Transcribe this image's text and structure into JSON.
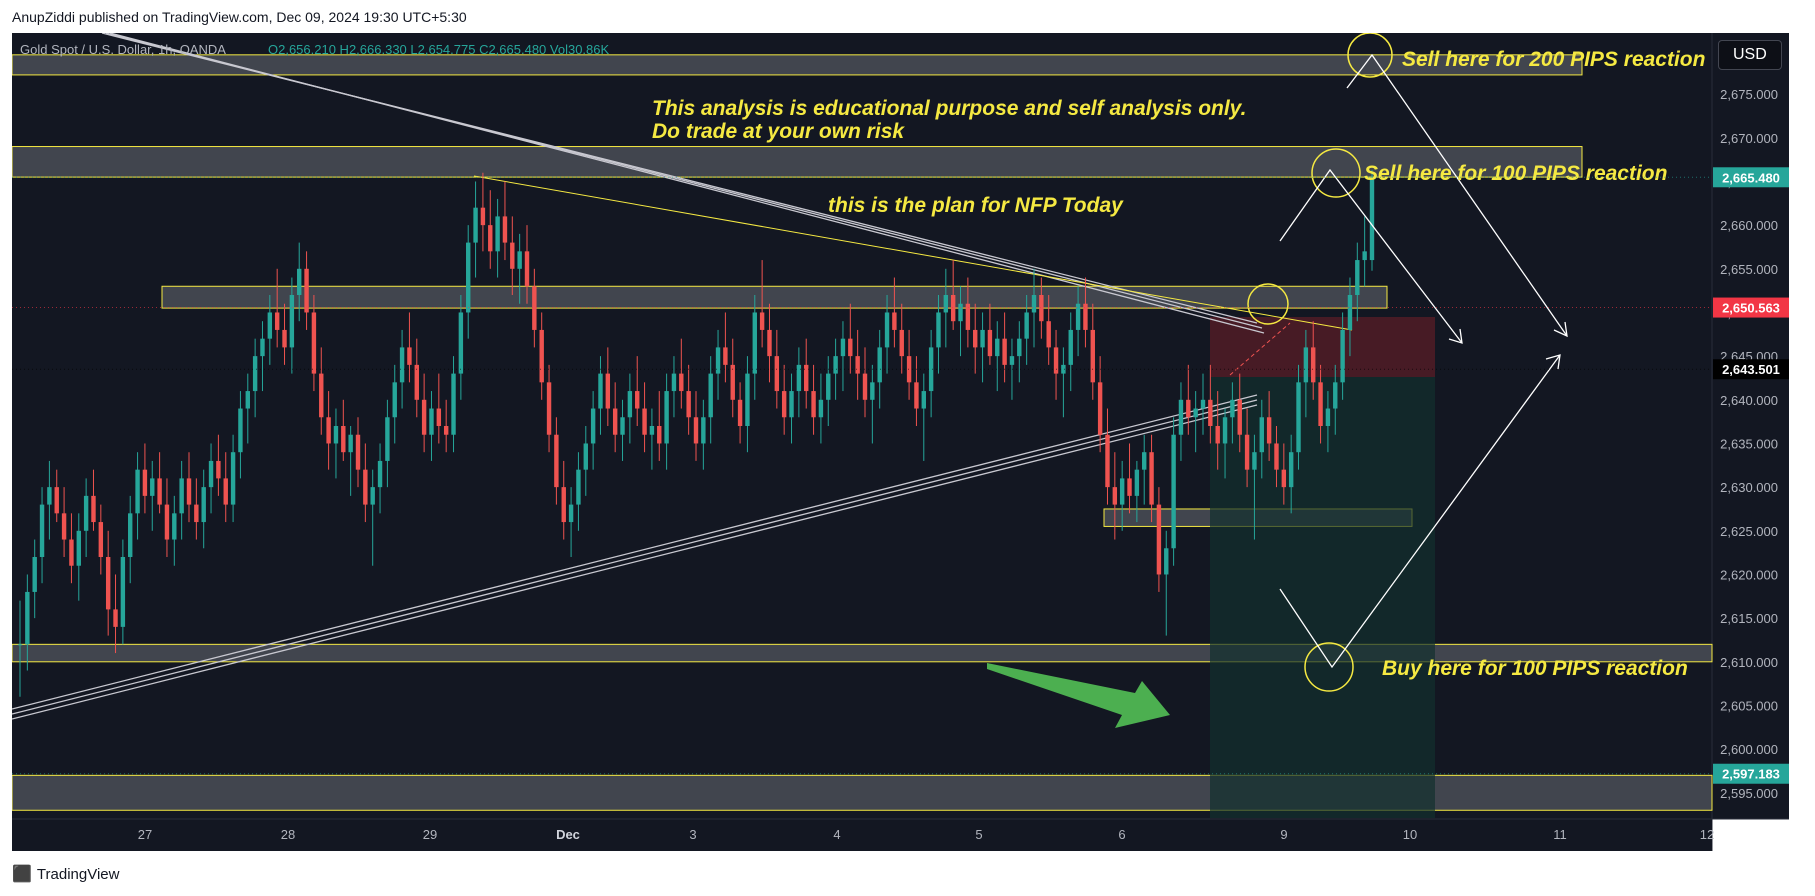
{
  "header": {
    "publisher": "AnupZiddi published on TradingView.com, Dec 09, 2024 19:30 UTC+5:30"
  },
  "symbol_info": {
    "name": "Gold Spot / U.S. Dollar, 1h, OANDA",
    "ohlc": "O2,656.210 H2,666.330 L2,654.775 C2,665.480 Vol30.86K"
  },
  "currency_button": "USD",
  "footer": {
    "brand": "TradingView"
  },
  "colors": {
    "background": "#131722",
    "up": "#26a69a",
    "down": "#ef5350",
    "annotation": "#f5e942",
    "zone_fill": "#4a4d56",
    "zone_border": "#f5e942",
    "red_zone": "#5a1e27",
    "green_zone": "#12302e",
    "arrow_green": "#4caf50"
  },
  "chart_data": {
    "type": "candlestick",
    "symbol": "Gold Spot / U.S. Dollar",
    "timeframe": "1h",
    "ylim": [
      2592,
      2682
    ],
    "y_ticks": [
      2595,
      2600,
      2605,
      2610,
      2615,
      2620,
      2625,
      2630,
      2635,
      2640,
      2645,
      2650,
      2655,
      2660,
      2665,
      2670,
      2675
    ],
    "x_ticks": [
      "27",
      "28",
      "29",
      "Dec",
      "3",
      "4",
      "5",
      "6",
      "9",
      "10",
      "11",
      "12"
    ],
    "price_labels": [
      {
        "value": 2665.48,
        "text": "2,665.480",
        "bg": "#26a69a"
      },
      {
        "value": 2650.563,
        "text": "2,650.563",
        "bg": "#f23645"
      },
      {
        "value": 2643.501,
        "text": "2,643.501",
        "bg": "#000000"
      },
      {
        "value": 2597.183,
        "text": "2,597.183",
        "bg": "#26a69a"
      }
    ],
    "zones": [
      {
        "low": 2677.2,
        "high": 2679.5
      },
      {
        "low": 2665.5,
        "high": 2669.0
      },
      {
        "low": 2650.5,
        "high": 2653.0
      },
      {
        "low": 2625.5,
        "high": 2627.5
      },
      {
        "low": 2610.0,
        "high": 2612.0
      },
      {
        "low": 2593.0,
        "high": 2597.0
      }
    ],
    "annotations": {
      "disclaimer_line1": "This analysis is educational purpose and self analysis only.",
      "disclaimer_line2": "Do trade at your own risk",
      "plan": "this is the plan for NFP Today",
      "sell_200": "Sell here for 200 PIPS reaction",
      "sell_100": "Sell here for 100 PIPS reaction",
      "buy_100": "Buy here for 100 PIPS reaction"
    },
    "candles": [
      [
        2612,
        2617,
        2606,
        2612
      ],
      [
        2612,
        2620,
        2609,
        2618
      ],
      [
        2618,
        2624,
        2615,
        2622
      ],
      [
        2622,
        2630,
        2619,
        2628
      ],
      [
        2628,
        2633,
        2624,
        2630
      ],
      [
        2630,
        2632,
        2626,
        2627
      ],
      [
        2627,
        2630,
        2622,
        2624
      ],
      [
        2624,
        2627,
        2619,
        2621
      ],
      [
        2621,
        2627,
        2617,
        2625
      ],
      [
        2625,
        2631,
        2622,
        2629
      ],
      [
        2629,
        2632,
        2625,
        2626
      ],
      [
        2626,
        2628,
        2620,
        2622
      ],
      [
        2622,
        2625,
        2613,
        2616
      ],
      [
        2616,
        2620,
        2611,
        2614
      ],
      [
        2614,
        2624,
        2612,
        2622
      ],
      [
        2622,
        2629,
        2619,
        2627
      ],
      [
        2627,
        2634,
        2624,
        2632
      ],
      [
        2632,
        2635,
        2627,
        2629
      ],
      [
        2629,
        2633,
        2625,
        2631
      ],
      [
        2631,
        2634,
        2627,
        2628
      ],
      [
        2628,
        2631,
        2622,
        2624
      ],
      [
        2624,
        2629,
        2621,
        2627
      ],
      [
        2627,
        2633,
        2624,
        2631
      ],
      [
        2631,
        2634,
        2626,
        2628
      ],
      [
        2628,
        2631,
        2624,
        2626
      ],
      [
        2626,
        2632,
        2623,
        2630
      ],
      [
        2630,
        2635,
        2627,
        2633
      ],
      [
        2633,
        2636,
        2629,
        2631
      ],
      [
        2631,
        2634,
        2626,
        2628
      ],
      [
        2628,
        2636,
        2626,
        2634
      ],
      [
        2634,
        2641,
        2631,
        2639
      ],
      [
        2639,
        2643,
        2635,
        2641
      ],
      [
        2641,
        2647,
        2638,
        2645
      ],
      [
        2645,
        2649,
        2641,
        2647
      ],
      [
        2647,
        2652,
        2644,
        2650
      ],
      [
        2650,
        2655,
        2646,
        2648
      ],
      [
        2648,
        2651,
        2644,
        2646
      ],
      [
        2646,
        2654,
        2643,
        2652
      ],
      [
        2652,
        2658,
        2649,
        2655
      ],
      [
        2655,
        2657,
        2648,
        2650
      ],
      [
        2650,
        2652,
        2641,
        2643
      ],
      [
        2643,
        2646,
        2636,
        2638
      ],
      [
        2638,
        2641,
        2632,
        2635
      ],
      [
        2635,
        2639,
        2631,
        2637
      ],
      [
        2637,
        2640,
        2633,
        2634
      ],
      [
        2634,
        2637,
        2629,
        2636
      ],
      [
        2636,
        2638,
        2630,
        2632
      ],
      [
        2632,
        2635,
        2626,
        2628
      ],
      [
        2628,
        2632,
        2621,
        2630
      ],
      [
        2630,
        2635,
        2627,
        2633
      ],
      [
        2633,
        2640,
        2630,
        2638
      ],
      [
        2638,
        2644,
        2635,
        2642
      ],
      [
        2642,
        2648,
        2639,
        2646
      ],
      [
        2646,
        2650,
        2642,
        2644
      ],
      [
        2644,
        2647,
        2638,
        2640
      ],
      [
        2640,
        2643,
        2634,
        2636
      ],
      [
        2636,
        2641,
        2633,
        2639
      ],
      [
        2639,
        2643,
        2635,
        2637
      ],
      [
        2637,
        2640,
        2634,
        2636
      ],
      [
        2636,
        2645,
        2634,
        2643
      ],
      [
        2643,
        2652,
        2640,
        2650
      ],
      [
        2650,
        2660,
        2647,
        2658
      ],
      [
        2658,
        2665,
        2654,
        2662
      ],
      [
        2662,
        2666,
        2657,
        2660
      ],
      [
        2660,
        2664,
        2655,
        2657
      ],
      [
        2657,
        2663,
        2654,
        2661
      ],
      [
        2661,
        2665,
        2656,
        2658
      ],
      [
        2658,
        2661,
        2652,
        2655
      ],
      [
        2655,
        2659,
        2651,
        2657
      ],
      [
        2657,
        2660,
        2651,
        2653
      ],
      [
        2653,
        2655,
        2646,
        2648
      ],
      [
        2648,
        2650,
        2640,
        2642
      ],
      [
        2642,
        2644,
        2634,
        2636
      ],
      [
        2636,
        2638,
        2628,
        2630
      ],
      [
        2630,
        2633,
        2624,
        2626
      ],
      [
        2626,
        2630,
        2622,
        2628
      ],
      [
        2628,
        2634,
        2625,
        2632
      ],
      [
        2632,
        2637,
        2629,
        2635
      ],
      [
        2635,
        2641,
        2632,
        2639
      ],
      [
        2639,
        2645,
        2636,
        2643
      ],
      [
        2643,
        2646,
        2637,
        2639
      ],
      [
        2639,
        2642,
        2634,
        2636
      ],
      [
        2636,
        2640,
        2633,
        2638
      ],
      [
        2638,
        2643,
        2635,
        2641
      ],
      [
        2641,
        2645,
        2637,
        2639
      ],
      [
        2639,
        2642,
        2634,
        2636
      ],
      [
        2636,
        2639,
        2632,
        2637
      ],
      [
        2637,
        2641,
        2633,
        2635
      ],
      [
        2635,
        2643,
        2632,
        2641
      ],
      [
        2641,
        2645,
        2638,
        2643
      ],
      [
        2643,
        2647,
        2639,
        2641
      ],
      [
        2641,
        2644,
        2636,
        2638
      ],
      [
        2638,
        2641,
        2633,
        2635
      ],
      [
        2635,
        2640,
        2632,
        2638
      ],
      [
        2638,
        2645,
        2635,
        2643
      ],
      [
        2643,
        2648,
        2640,
        2646
      ],
      [
        2646,
        2650,
        2642,
        2644
      ],
      [
        2644,
        2647,
        2638,
        2640
      ],
      [
        2640,
        2642,
        2635,
        2637
      ],
      [
        2637,
        2645,
        2634,
        2643
      ],
      [
        2643,
        2652,
        2640,
        2650
      ],
      [
        2650,
        2656,
        2646,
        2648
      ],
      [
        2648,
        2651,
        2642,
        2645
      ],
      [
        2645,
        2648,
        2639,
        2641
      ],
      [
        2641,
        2644,
        2636,
        2638
      ],
      [
        2638,
        2643,
        2635,
        2641
      ],
      [
        2641,
        2646,
        2638,
        2644
      ],
      [
        2644,
        2647,
        2639,
        2641
      ],
      [
        2641,
        2644,
        2636,
        2638
      ],
      [
        2638,
        2643,
        2635,
        2640
      ],
      [
        2640,
        2645,
        2637,
        2643
      ],
      [
        2643,
        2647,
        2640,
        2645
      ],
      [
        2645,
        2649,
        2641,
        2647
      ],
      [
        2647,
        2651,
        2643,
        2645
      ],
      [
        2645,
        2648,
        2640,
        2643
      ],
      [
        2643,
        2646,
        2638,
        2640
      ],
      [
        2640,
        2644,
        2635,
        2642
      ],
      [
        2642,
        2648,
        2639,
        2646
      ],
      [
        2646,
        2652,
        2643,
        2650
      ],
      [
        2650,
        2654,
        2646,
        2648
      ],
      [
        2648,
        2651,
        2643,
        2645
      ],
      [
        2645,
        2648,
        2640,
        2642
      ],
      [
        2642,
        2645,
        2637,
        2639
      ],
      [
        2639,
        2643,
        2633,
        2641
      ],
      [
        2641,
        2648,
        2638,
        2646
      ],
      [
        2646,
        2652,
        2643,
        2650
      ],
      [
        2650,
        2655,
        2646,
        2652
      ],
      [
        2652,
        2656,
        2648,
        2649
      ],
      [
        2649,
        2653,
        2645,
        2651
      ],
      [
        2651,
        2654,
        2646,
        2648
      ],
      [
        2648,
        2651,
        2643,
        2646
      ],
      [
        2646,
        2650,
        2642,
        2648
      ],
      [
        2648,
        2651,
        2644,
        2645
      ],
      [
        2645,
        2649,
        2641,
        2647
      ],
      [
        2647,
        2650,
        2642,
        2644
      ],
      [
        2644,
        2647,
        2640,
        2645
      ],
      [
        2645,
        2649,
        2642,
        2647
      ],
      [
        2647,
        2652,
        2644,
        2650
      ],
      [
        2650,
        2655,
        2646,
        2652
      ],
      [
        2652,
        2654,
        2647,
        2649
      ],
      [
        2649,
        2652,
        2644,
        2646
      ],
      [
        2646,
        2648,
        2640,
        2643
      ],
      [
        2643,
        2646,
        2638,
        2644
      ],
      [
        2644,
        2650,
        2641,
        2648
      ],
      [
        2648,
        2653,
        2645,
        2651
      ],
      [
        2651,
        2654,
        2646,
        2648
      ],
      [
        2648,
        2651,
        2640,
        2642
      ],
      [
        2642,
        2645,
        2634,
        2636
      ],
      [
        2636,
        2639,
        2628,
        2630
      ],
      [
        2630,
        2634,
        2624,
        2628
      ],
      [
        2628,
        2633,
        2625,
        2631
      ],
      [
        2631,
        2635,
        2627,
        2629
      ],
      [
        2629,
        2633,
        2626,
        2632
      ],
      [
        2632,
        2636,
        2628,
        2634
      ],
      [
        2634,
        2636,
        2626,
        2628
      ],
      [
        2628,
        2630,
        2618,
        2620
      ],
      [
        2620,
        2625,
        2613,
        2623
      ],
      [
        2623,
        2638,
        2621,
        2636
      ],
      [
        2636,
        2642,
        2633,
        2640
      ],
      [
        2640,
        2644,
        2636,
        2638
      ],
      [
        2638,
        2641,
        2634,
        2639
      ],
      [
        2639,
        2643,
        2636,
        2640
      ],
      [
        2640,
        2644,
        2635,
        2637
      ],
      [
        2637,
        2641,
        2632,
        2635
      ],
      [
        2635,
        2639,
        2631,
        2638
      ],
      [
        2638,
        2642,
        2635,
        2640
      ],
      [
        2640,
        2643,
        2634,
        2636
      ],
      [
        2636,
        2639,
        2630,
        2632
      ],
      [
        2632,
        2636,
        2624,
        2634
      ],
      [
        2634,
        2640,
        2631,
        2638
      ],
      [
        2638,
        2641,
        2633,
        2635
      ],
      [
        2635,
        2637,
        2630,
        2632
      ],
      [
        2632,
        2635,
        2628,
        2630
      ],
      [
        2630,
        2636,
        2627,
        2634
      ],
      [
        2634,
        2644,
        2632,
        2642
      ],
      [
        2642,
        2648,
        2638,
        2646
      ],
      [
        2646,
        2649,
        2640,
        2642
      ],
      [
        2642,
        2644,
        2635,
        2637
      ],
      [
        2637,
        2641,
        2634,
        2639
      ],
      [
        2639,
        2644,
        2636,
        2642
      ],
      [
        2642,
        2650,
        2640,
        2648
      ],
      [
        2648,
        2654,
        2645,
        2652
      ],
      [
        2652,
        2658,
        2649,
        2656
      ],
      [
        2656,
        2661,
        2653,
        2657
      ],
      [
        2656,
        2666.33,
        2654.78,
        2665.48
      ]
    ]
  }
}
